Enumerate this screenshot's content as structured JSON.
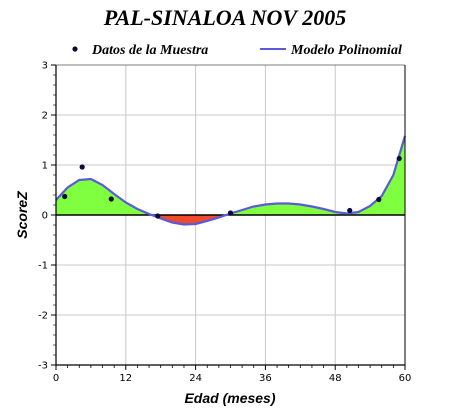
{
  "chart_data": {
    "type": "line",
    "title": "PAL-SINALOA NOV 2005",
    "xlabel": "Edad (meses)",
    "ylabel": "ScoreZ",
    "xlim": [
      0,
      60
    ],
    "ylim": [
      -3,
      3
    ],
    "xticks": [
      0,
      12,
      24,
      36,
      48,
      60
    ],
    "yticks": [
      -3,
      -2,
      -1,
      0,
      1,
      2,
      3
    ],
    "grid": true,
    "legend": "top",
    "series": [
      {
        "name": "Datos de la Muestra",
        "kind": "scatter",
        "color": "#0b0b3b",
        "points": [
          [
            1.5,
            0.37
          ],
          [
            4.5,
            0.96
          ],
          [
            9.5,
            0.32
          ],
          [
            17.5,
            -0.02
          ],
          [
            30,
            0.04
          ],
          [
            50.5,
            0.09
          ],
          [
            55.5,
            0.31
          ],
          [
            59,
            1.13
          ]
        ]
      },
      {
        "name": "Modelo Polinomial",
        "kind": "line",
        "color": "#5a5adc",
        "points": [
          [
            0,
            0.3
          ],
          [
            2,
            0.55
          ],
          [
            4,
            0.7
          ],
          [
            6,
            0.72
          ],
          [
            8,
            0.6
          ],
          [
            10,
            0.42
          ],
          [
            12,
            0.25
          ],
          [
            14,
            0.12
          ],
          [
            16,
            0.02
          ],
          [
            18,
            -0.07
          ],
          [
            20,
            -0.15
          ],
          [
            22,
            -0.19
          ],
          [
            24,
            -0.18
          ],
          [
            26,
            -0.12
          ],
          [
            28,
            -0.05
          ],
          [
            30,
            0.03
          ],
          [
            32,
            0.1
          ],
          [
            34,
            0.17
          ],
          [
            36,
            0.21
          ],
          [
            38,
            0.23
          ],
          [
            40,
            0.23
          ],
          [
            42,
            0.21
          ],
          [
            44,
            0.17
          ],
          [
            46,
            0.12
          ],
          [
            48,
            0.06
          ],
          [
            50,
            0.03
          ],
          [
            52,
            0.06
          ],
          [
            54,
            0.18
          ],
          [
            56,
            0.38
          ],
          [
            58,
            0.8
          ],
          [
            60,
            1.58
          ]
        ]
      }
    ],
    "fill_positive_color": "#80ff40",
    "fill_negative_color": "#ee4a2c"
  }
}
